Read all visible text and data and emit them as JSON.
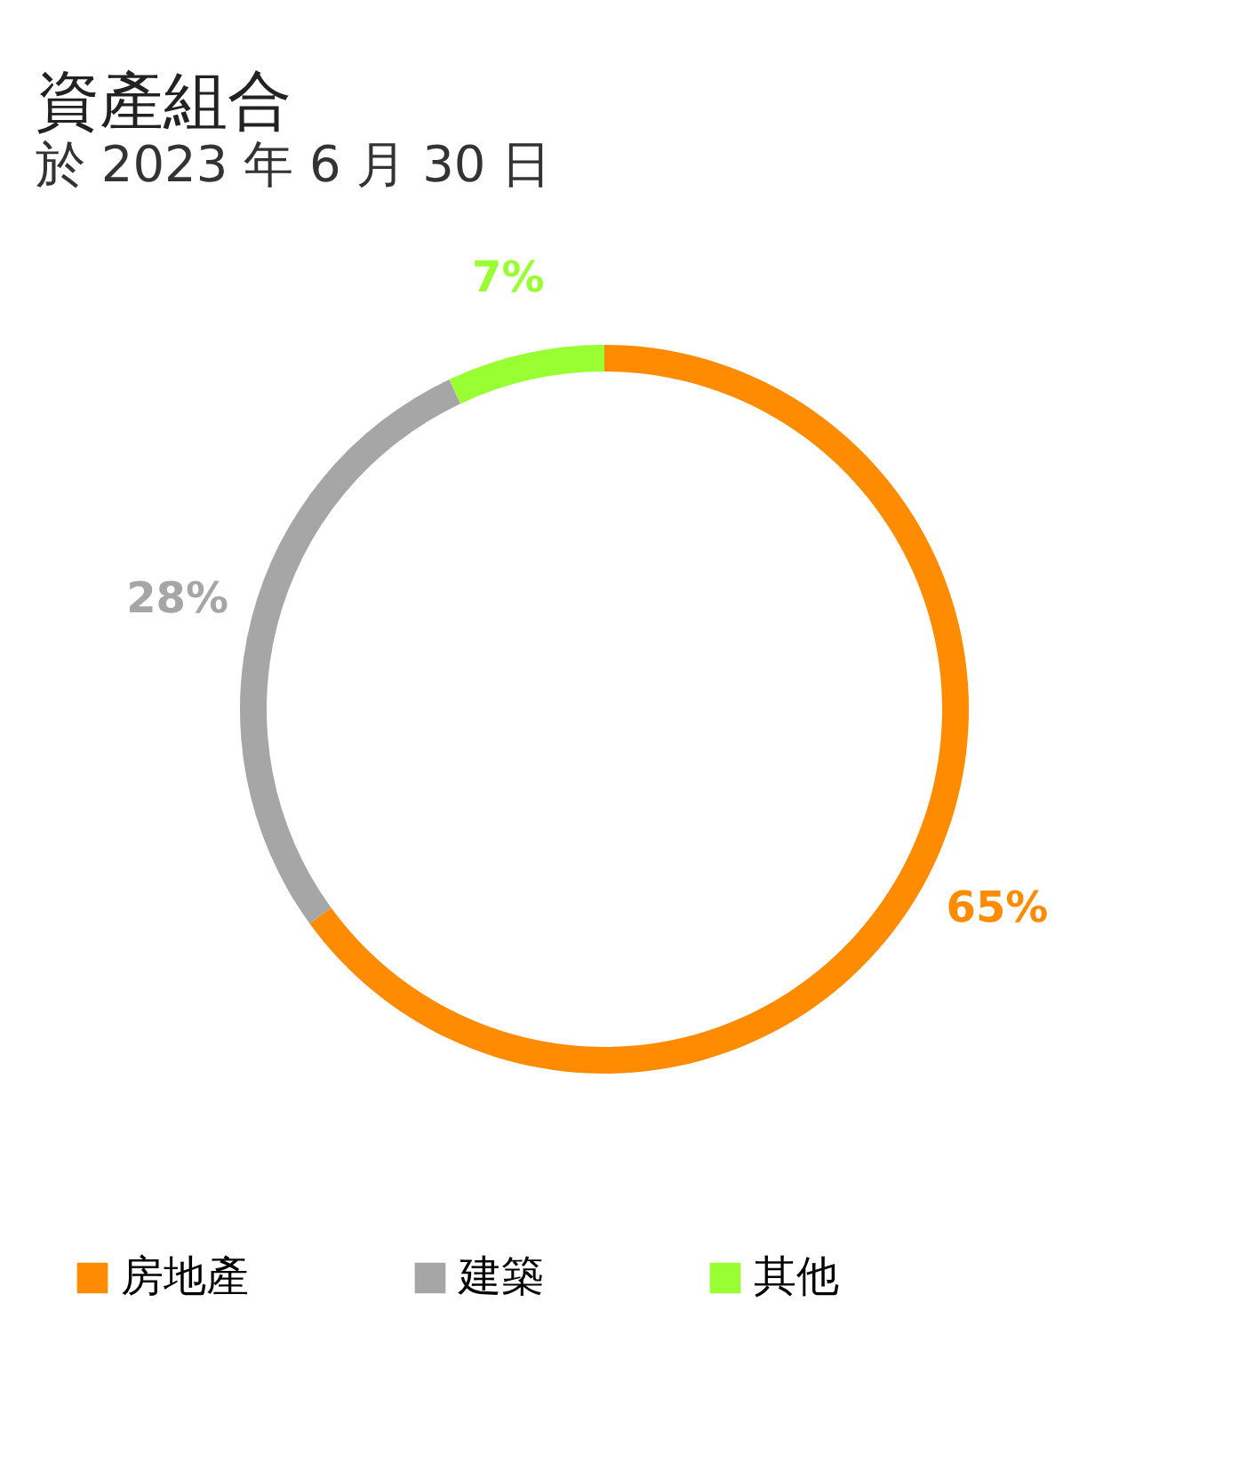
{
  "chart_data": {
    "type": "donut",
    "title": "資產組合",
    "subtitle": "於 2023 年 6 月 30 日",
    "categories": [
      "房地產",
      "建築",
      "其他"
    ],
    "values": [
      65,
      28,
      7
    ],
    "colors": [
      "#ff8c00",
      "#a6a6a6",
      "#99ff33"
    ],
    "value_labels": [
      "65%",
      "28%",
      "7%"
    ],
    "legend": "bottom"
  }
}
